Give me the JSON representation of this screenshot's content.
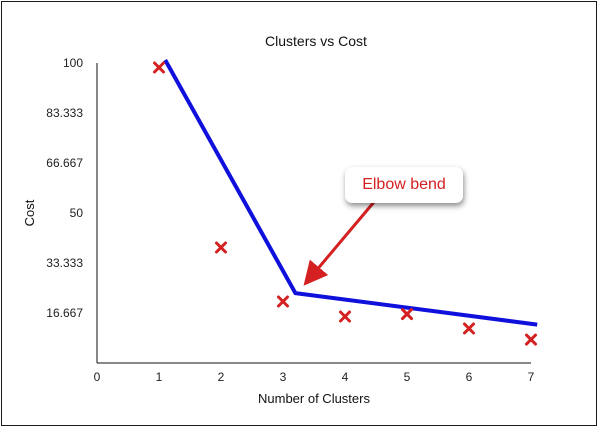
{
  "chart_data": {
    "type": "scatter",
    "title": "Clusters vs Cost",
    "xlabel": "Number of Clusters",
    "ylabel": "Cost",
    "xlim": [
      0,
      7
    ],
    "ylim": [
      0,
      100
    ],
    "x_ticks": [
      "0",
      "1",
      "2",
      "3",
      "4",
      "5",
      "6",
      "7"
    ],
    "y_ticks": [
      "16.667",
      "33.333",
      "50",
      "66.667",
      "83.333",
      "100"
    ],
    "y_tick_values": [
      16.667,
      33.333,
      50,
      66.667,
      83.333,
      100
    ],
    "points": [
      {
        "x": 1,
        "y": 98.5
      },
      {
        "x": 2,
        "y": 38.5
      },
      {
        "x": 3,
        "y": 20.5
      },
      {
        "x": 4,
        "y": 15.5
      },
      {
        "x": 5,
        "y": 16.3
      },
      {
        "x": 6,
        "y": 11.5
      },
      {
        "x": 7,
        "y": 7.8
      }
    ],
    "trend_line": [
      {
        "x": 1.1,
        "y": 101
      },
      {
        "x": 3.2,
        "y": 23.3
      },
      {
        "x": 7.1,
        "y": 12.8
      }
    ],
    "annotation": {
      "text": "Elbow bend",
      "target": {
        "x": 3.2,
        "y": 23.3
      }
    },
    "colors": {
      "marker": "#d42020",
      "trend": "#1010dd",
      "annotation": "#d42020",
      "axis": "#111111"
    },
    "grid": false
  }
}
